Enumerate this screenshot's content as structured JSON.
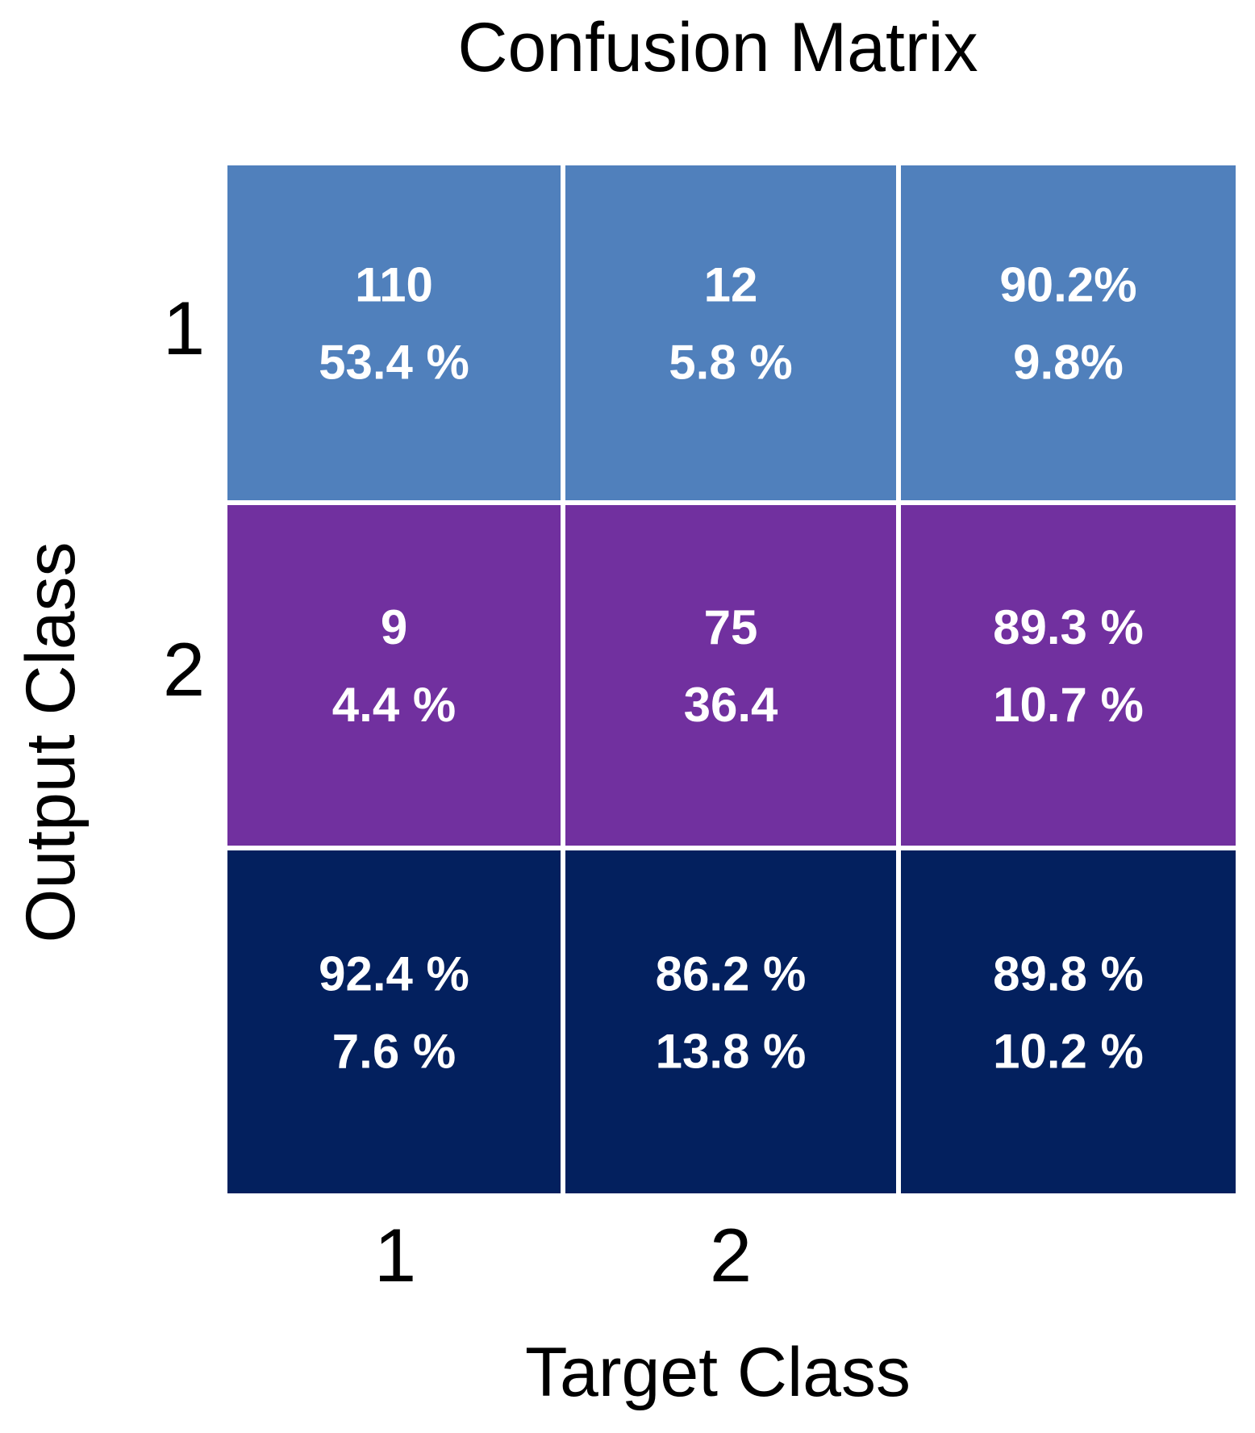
{
  "chart_data": {
    "type": "heatmap",
    "title": "Confusion Matrix",
    "xlabel": "Target Class",
    "ylabel": "Output Class",
    "x_tick_labels": [
      "1",
      "2",
      ""
    ],
    "y_tick_labels": [
      "1",
      "2",
      ""
    ],
    "row_colors": [
      "#5080bc",
      "#71309f",
      "#03205e"
    ],
    "cell_text_color": "#ffffff",
    "grid_line_color": "#ffffff",
    "cells": [
      [
        {
          "line1": "110",
          "line2": "53.4 %"
        },
        {
          "line1": "12",
          "line2": "5.8 %"
        },
        {
          "line1": "90.2%",
          "line2": "9.8%"
        }
      ],
      [
        {
          "line1": "9",
          "line2": "4.4 %"
        },
        {
          "line1": "75",
          "line2": "36.4"
        },
        {
          "line1": "89.3 %",
          "line2": "10.7 %"
        }
      ],
      [
        {
          "line1": "92.4 %",
          "line2": "7.6 %"
        },
        {
          "line1": "86.2 %",
          "line2": "13.8 %"
        },
        {
          "line1": "89.8 %",
          "line2": "10.2 %"
        }
      ]
    ]
  }
}
